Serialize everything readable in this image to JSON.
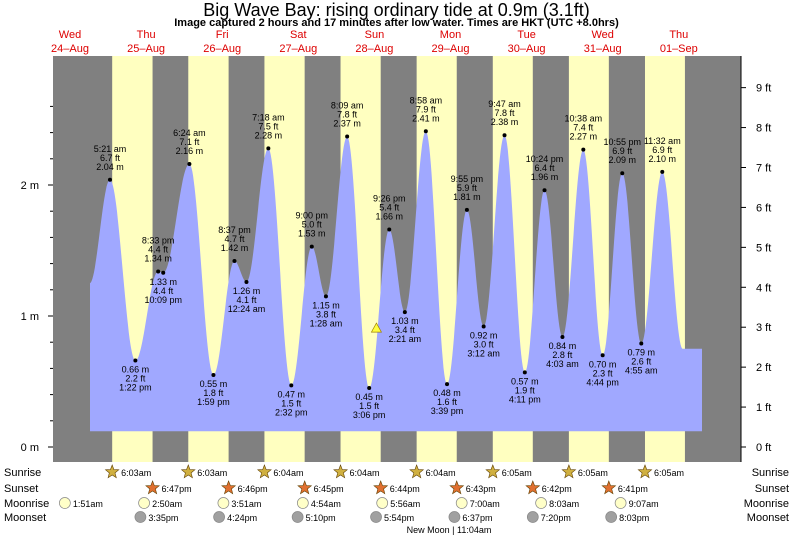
{
  "title": "Big Wave Bay: rising  ordinary tide at 0.9m (3.1ft)",
  "subtitle": "Image captured 2 hours and 17 minutes after low water. Times are HKT (UTC +8.0hrs)",
  "colors": {
    "night": "#808080",
    "day": "#ffffc0",
    "water": "#a0a8ff",
    "daylabel": "#dd0000"
  },
  "chart_data": {
    "type": "area",
    "title": "Big Wave Bay: rising  ordinary tide at 0.9m (3.1ft)",
    "xlabel": "",
    "ylabel": "",
    "left_axis": {
      "unit": "m",
      "ticks": [
        "0 m",
        "1 m",
        "2 m"
      ],
      "values": [
        0,
        1,
        2
      ]
    },
    "right_axis": {
      "unit": "ft",
      "ticks": [
        "0 ft",
        "1 ft",
        "2 ft",
        "3 ft",
        "4 ft",
        "5 ft",
        "6 ft",
        "7 ft",
        "8 ft",
        "9 ft"
      ],
      "values": [
        0,
        1,
        2,
        3,
        4,
        5,
        6,
        7,
        8,
        9
      ]
    },
    "ylim_m": [
      0,
      2.85
    ],
    "xlim_hours": [
      0,
      216
    ],
    "days": [
      {
        "dow": "Wed",
        "date": "24–Aug"
      },
      {
        "dow": "Thu",
        "date": "25–Aug"
      },
      {
        "dow": "Fri",
        "date": "26–Aug"
      },
      {
        "dow": "Sat",
        "date": "27–Aug"
      },
      {
        "dow": "Sun",
        "date": "28–Aug"
      },
      {
        "dow": "Mon",
        "date": "29–Aug"
      },
      {
        "dow": "Tue",
        "date": "30–Aug"
      },
      {
        "dow": "Wed",
        "date": "31–Aug"
      },
      {
        "dow": "Thu",
        "date": "01–Sep"
      }
    ],
    "extremes": [
      {
        "day": 0,
        "time": "5:21 am",
        "ft": "6.7 ft",
        "m": "2.04 m",
        "h": 2.04,
        "type": "high"
      },
      {
        "day": 0,
        "time": "1:22 pm",
        "ft": "2.2 ft",
        "m": "0.66 m",
        "h": 0.66,
        "type": "low"
      },
      {
        "day": 0,
        "time": "8:33 pm",
        "ft": "4.4 ft",
        "m": "1.34 m",
        "h": 1.34,
        "type": "high"
      },
      {
        "day": 0,
        "time": "10:09 pm",
        "ft": "4.4 ft",
        "m": "1.33 m",
        "h": 1.33,
        "type": "low"
      },
      {
        "day": 1,
        "time": "6:24 am",
        "ft": "7.1 ft",
        "m": "2.16 m",
        "h": 2.16,
        "type": "high"
      },
      {
        "day": 1,
        "time": "1:59 pm",
        "ft": "1.8 ft",
        "m": "0.55 m",
        "h": 0.55,
        "type": "low"
      },
      {
        "day": 1,
        "time": "8:37 pm",
        "ft": "4.7 ft",
        "m": "1.42 m",
        "h": 1.42,
        "type": "high"
      },
      {
        "day": 2,
        "time": "12:24 am",
        "ft": "4.1 ft",
        "m": "1.26 m",
        "h": 1.26,
        "type": "low"
      },
      {
        "day": 2,
        "time": "7:18 am",
        "ft": "7.5 ft",
        "m": "2.28 m",
        "h": 2.28,
        "type": "high"
      },
      {
        "day": 2,
        "time": "2:32 pm",
        "ft": "1.5 ft",
        "m": "0.47 m",
        "h": 0.47,
        "type": "low"
      },
      {
        "day": 2,
        "time": "9:00 pm",
        "ft": "5.0 ft",
        "m": "1.53 m",
        "h": 1.53,
        "type": "high"
      },
      {
        "day": 3,
        "time": "1:28 am",
        "ft": "3.8 ft",
        "m": "1.15 m",
        "h": 1.15,
        "type": "low"
      },
      {
        "day": 3,
        "time": "8:09 am",
        "ft": "7.8 ft",
        "m": "2.37 m",
        "h": 2.37,
        "type": "high"
      },
      {
        "day": 3,
        "time": "3:06 pm",
        "ft": "1.5 ft",
        "m": "0.45 m",
        "h": 0.45,
        "type": "low"
      },
      {
        "day": 3,
        "time": "9:26 pm",
        "ft": "5.4 ft",
        "m": "1.66 m",
        "h": 1.66,
        "type": "high"
      },
      {
        "day": 4,
        "time": "2:21 am",
        "ft": "3.4 ft",
        "m": "1.03 m",
        "h": 1.03,
        "type": "low"
      },
      {
        "day": 4,
        "time": "8:58 am",
        "ft": "7.9 ft",
        "m": "2.41 m",
        "h": 2.41,
        "type": "high"
      },
      {
        "day": 4,
        "time": "3:39 pm",
        "ft": "1.6 ft",
        "m": "0.48 m",
        "h": 0.48,
        "type": "low"
      },
      {
        "day": 4,
        "time": "9:55 pm",
        "ft": "5.9 ft",
        "m": "1.81 m",
        "h": 1.81,
        "type": "high"
      },
      {
        "day": 5,
        "time": "3:12 am",
        "ft": "3.0 ft",
        "m": "0.92 m",
        "h": 0.92,
        "type": "low"
      },
      {
        "day": 5,
        "time": "9:47 am",
        "ft": "7.8 ft",
        "m": "2.38 m",
        "h": 2.38,
        "type": "high"
      },
      {
        "day": 5,
        "time": "4:11 pm",
        "ft": "1.9 ft",
        "m": "0.57 m",
        "h": 0.57,
        "type": "low"
      },
      {
        "day": 5,
        "time": "10:24 pm",
        "ft": "6.4 ft",
        "m": "1.96 m",
        "h": 1.96,
        "type": "high"
      },
      {
        "day": 6,
        "time": "4:03 am",
        "ft": "2.8 ft",
        "m": "0.84 m",
        "h": 0.84,
        "type": "low"
      },
      {
        "day": 6,
        "time": "10:38 am",
        "ft": "7.4 ft",
        "m": "2.27 m",
        "h": 2.27,
        "type": "high"
      },
      {
        "day": 6,
        "time": "4:44 pm",
        "ft": "2.3 ft",
        "m": "0.70 m",
        "h": 0.7,
        "type": "low"
      },
      {
        "day": 6,
        "time": "10:55 pm",
        "ft": "6.9 ft",
        "m": "2.09 m",
        "h": 2.09,
        "type": "high"
      },
      {
        "day": 7,
        "time": "4:55 am",
        "ft": "2.6 ft",
        "m": "0.79 m",
        "h": 0.79,
        "type": "low"
      },
      {
        "day": 7,
        "time": "11:32 am",
        "ft": "6.9 ft",
        "m": "2.10 m",
        "h": 2.1,
        "type": "high"
      }
    ],
    "current": {
      "day": 3,
      "time": "5:23 pm",
      "h": 0.9
    }
  },
  "rows": {
    "labels": [
      "Sunrise",
      "Sunset",
      "Moonrise",
      "Moonset"
    ],
    "sunrise": [
      "6:03am",
      "6:03am",
      "6:04am",
      "6:04am",
      "6:04am",
      "6:05am",
      "6:05am",
      "6:05am"
    ],
    "sunset": [
      "6:47pm",
      "6:46pm",
      "6:45pm",
      "6:44pm",
      "6:43pm",
      "6:42pm",
      "6:41pm"
    ],
    "moonrise": [
      "1:51am",
      "2:50am",
      "3:51am",
      "4:54am",
      "5:56am",
      "7:00am",
      "8:03am",
      "9:07am"
    ],
    "moonset": [
      "3:35pm",
      "4:24pm",
      "5:10pm",
      "5:54pm",
      "6:37pm",
      "7:20pm",
      "8:03pm"
    ],
    "note": "New Moon | 11:04am"
  }
}
